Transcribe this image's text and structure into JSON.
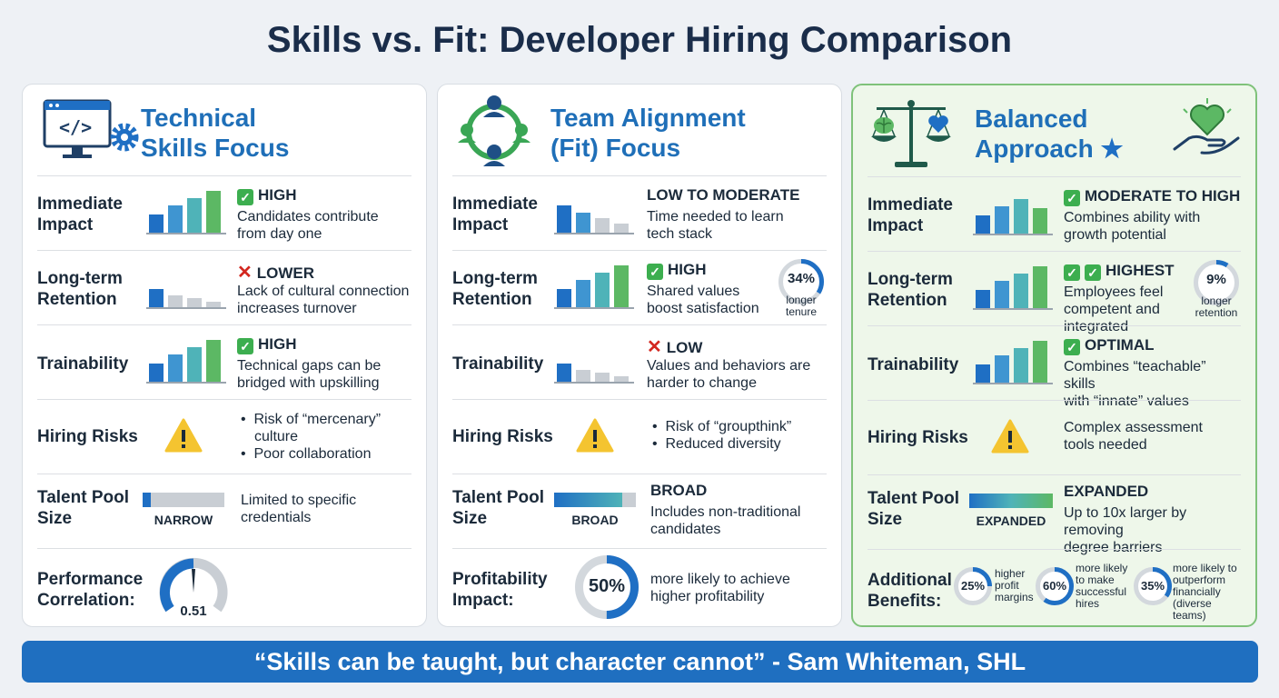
{
  "title": "Skills vs. Fit: Developer Hiring Comparison",
  "quote": "“Skills can be taught, but character cannot” - Sam Whiteman, SHL",
  "colors": {
    "accent": "#1f6fb8",
    "green": "#3cae4f",
    "red": "#d3271f",
    "warning": "#f4c430"
  },
  "panels": [
    {
      "title_l1": "Technical",
      "title_l2": "Skills Focus",
      "icon": "monitor-code-gear-icon",
      "rows": {
        "impact": {
          "label_l1": "Immediate",
          "label_l2": "Impact",
          "status": "HIGH",
          "desc_l1": "Candidates contribute",
          "desc_l2": "from day one"
        },
        "retention": {
          "label_l1": "Long-term",
          "label_l2": "Retention",
          "status": "LOWER",
          "desc_l1": "Lack of cultural connection",
          "desc_l2": "increases turnover"
        },
        "trainability": {
          "label": "Trainability",
          "status": "HIGH",
          "desc_l1": "Technical gaps can be",
          "desc_l2": "bridged with upskilling"
        },
        "risks": {
          "label": "Hiring Risks",
          "bullet1_l1": "Risk of “mercenary”",
          "bullet1_l2": "culture",
          "bullet2": "Poor collaboration"
        },
        "pool": {
          "label_l1": "Talent Pool",
          "label_l2": "Size",
          "bar_label": "NARROW",
          "bar_fill": 0.1,
          "desc_l1": "Limited to specific",
          "desc_l2": "credentials"
        },
        "last": {
          "label_l1": "Performance",
          "label_l2": "Correlation:",
          "value": "0.51"
        }
      }
    },
    {
      "title_l1": "Team Alignment",
      "title_l2": "(Fit) Focus",
      "icon": "team-network-icon",
      "rows": {
        "impact": {
          "label_l1": "Immediate",
          "label_l2": "Impact",
          "status": "LOW TO MODERATE",
          "desc_l1": "Time needed to learn",
          "desc_l2": "tech stack"
        },
        "retention": {
          "label_l1": "Long-term",
          "label_l2": "Retention",
          "status": "HIGH",
          "desc_l1": "Shared values",
          "desc_l2": "boost satisfaction",
          "ring_value": "34%",
          "ring_l1": "longer",
          "ring_l2": "tenure",
          "ring_fill": 0.34
        },
        "trainability": {
          "label": "Trainability",
          "status": "LOW",
          "desc_l1": "Values and behaviors are",
          "desc_l2": "harder to change"
        },
        "risks": {
          "label": "Hiring Risks",
          "bullet1": "Risk of “groupthink”",
          "bullet2": "Reduced diversity"
        },
        "pool": {
          "label_l1": "Talent Pool",
          "label_l2": "Size",
          "bar_label": "BROAD",
          "bar_fill": 0.83,
          "status": "BROAD",
          "desc_l1": "Includes non-traditional",
          "desc_l2": "candidates"
        },
        "last": {
          "label_l1": "Profitability",
          "label_l2": "Impact:",
          "value": "50%",
          "fill": 0.5,
          "desc_l1": "more likely to achieve",
          "desc_l2": "higher profitability"
        }
      }
    },
    {
      "title_l1": "Balanced",
      "title_l2": "Approach",
      "icon": "scale-brain-heart-icon",
      "rows": {
        "impact": {
          "label_l1": "Immediate",
          "label_l2": "Impact",
          "status": "MODERATE TO HIGH",
          "desc_l1": "Combines ability with",
          "desc_l2": "growth potential"
        },
        "retention": {
          "label_l1": "Long-term",
          "label_l2": "Retention",
          "status": "HIGHEST",
          "desc_l1": "Employees feel",
          "desc_l2": "competent and",
          "desc_l3": "integrated",
          "ring_value": "9%",
          "ring_l1": "longer",
          "ring_l2": "retention",
          "ring_fill": 0.09
        },
        "trainability": {
          "label": "Trainability",
          "status": "OPTIMAL",
          "desc_l1": "Combines “teachable” skills",
          "desc_l2": "with “innate” values"
        },
        "risks": {
          "label": "Hiring Risks",
          "desc_l1": "Complex assessment",
          "desc_l2": "tools needed"
        },
        "pool": {
          "label_l1": "Talent Pool",
          "label_l2": "Size",
          "bar_label": "EXPANDED",
          "bar_fill": 1.0,
          "status": "EXPANDED",
          "desc_l1": "Up to 10x larger by removing",
          "desc_l2": "degree barriers"
        },
        "last": {
          "label_l1": "Additional",
          "label_l2": "Benefits:",
          "b1": {
            "value": "25%",
            "fill": 0.25,
            "l1": "higher",
            "l2": "profit",
            "l3": "margins"
          },
          "b2": {
            "value": "60%",
            "fill": 0.6,
            "l1": "more likely",
            "l2": "to make",
            "l3": "successful",
            "l4": "hires"
          },
          "b3": {
            "value": "35%",
            "fill": 0.35,
            "l1": "more likely to",
            "l2": "outperform",
            "l3": "financially",
            "l4": "(diverse teams)"
          }
        }
      }
    }
  ]
}
